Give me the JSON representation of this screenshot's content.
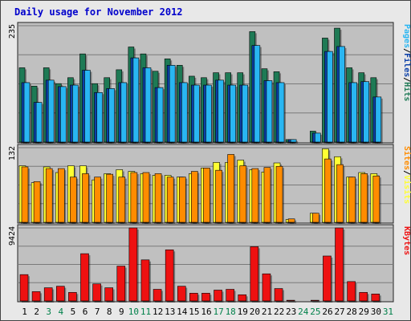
{
  "chart_data": {
    "type": "bar",
    "title": "Daily usage for November 2012",
    "categories": [
      "1",
      "2",
      "3",
      "4",
      "5",
      "6",
      "7",
      "8",
      "9",
      "10",
      "11",
      "12",
      "13",
      "14",
      "15",
      "16",
      "17",
      "18",
      "19",
      "20",
      "21",
      "22",
      "23",
      "24",
      "25",
      "26",
      "27",
      "28",
      "29",
      "30",
      "31"
    ],
    "weekend_days": [
      "3",
      "4",
      "10",
      "11",
      "17",
      "18",
      "24",
      "25",
      "31"
    ],
    "colors": {
      "hits": "#1e7a55",
      "files": "#0b3fa8",
      "pages": "#29b6f2",
      "visits": "#ffff33",
      "sites": "#ff8c00",
      "kbytes": "#ee1111",
      "title": "#0000cc",
      "weekday_label": "#000000",
      "weekend_label": "#00804a",
      "panel_bg": "#c0c0c0"
    },
    "panels": [
      {
        "id": "hits-files-pages",
        "max_label": "235",
        "max": 235,
        "legend": [
          {
            "text": "Pages",
            "color": "#29b6f2"
          },
          {
            "text": "/",
            "color": "#000000"
          },
          {
            "text": "Files",
            "color": "#0b3fa8"
          },
          {
            "text": "/",
            "color": "#000000"
          },
          {
            "text": "Hits",
            "color": "#1e7a55"
          }
        ],
        "series": [
          {
            "name": "Hits",
            "values": [
              150,
              113,
              150,
              118,
              130,
              178,
              118,
              130,
              146,
              192,
              178,
              143,
              168,
              155,
              133,
              130,
              140,
              140,
              140,
              223,
              148,
              142,
              5,
              0,
              22,
              210,
              230,
              150,
              140,
              130,
              0
            ]
          },
          {
            "name": "Files",
            "values": [
              120,
              80,
              125,
              112,
              115,
              145,
              100,
              108,
              120,
              170,
              150,
              110,
              155,
              120,
              115,
              115,
              125,
              115,
              115,
              195,
              124,
              120,
              5,
              0,
              18,
              183,
              193,
              120,
              122,
              91,
              0
            ]
          },
          {
            "name": "Pages",
            "values": [
              120,
              80,
              125,
              112,
              115,
              145,
              100,
              108,
              120,
              170,
              150,
              110,
              155,
              120,
              115,
              115,
              125,
              115,
              115,
              195,
              124,
              120,
              5,
              0,
              18,
              183,
              193,
              120,
              122,
              91,
              0
            ]
          }
        ]
      },
      {
        "id": "visits-sites",
        "max_label": "132",
        "max": 132,
        "legend": [
          {
            "text": "Sites",
            "color": "#ff8c00"
          },
          {
            "text": "/",
            "color": "#000000"
          },
          {
            "text": "Visits",
            "color": "#ffff33"
          }
        ],
        "series": [
          {
            "name": "Visits",
            "values": [
              100,
              70,
              98,
              88,
              100,
              100,
              75,
              86,
              93,
              90,
              86,
              83,
              83,
              80,
              86,
              96,
              106,
              106,
              110,
              93,
              89,
              105,
              5,
              0,
              16,
              130,
              116,
              80,
              88,
              86,
              0
            ]
          },
          {
            "name": "Sites",
            "values": [
              98,
              72,
              95,
              95,
              80,
              86,
              80,
              85,
              80,
              88,
              88,
              86,
              80,
              80,
              90,
              96,
              92,
              120,
              100,
              95,
              97,
              99,
              6,
              0,
              16,
              112,
              102,
              80,
              86,
              82,
              0
            ]
          }
        ]
      },
      {
        "id": "kbytes",
        "max_label": "9424",
        "max": 9424,
        "legend": [
          {
            "text": "KBytes",
            "color": "#ee1111"
          }
        ],
        "series": [
          {
            "name": "KBytes",
            "values": [
              3400,
              1200,
              1700,
              1900,
              1100,
              6100,
              2200,
              1700,
              4500,
              9424,
              5300,
              1500,
              6600,
              1900,
              1000,
              1000,
              1400,
              1500,
              800,
              7000,
              3500,
              1600,
              90,
              0,
              90,
              5800,
              9424,
              2500,
              1100,
              900,
              0
            ]
          }
        ]
      }
    ]
  }
}
